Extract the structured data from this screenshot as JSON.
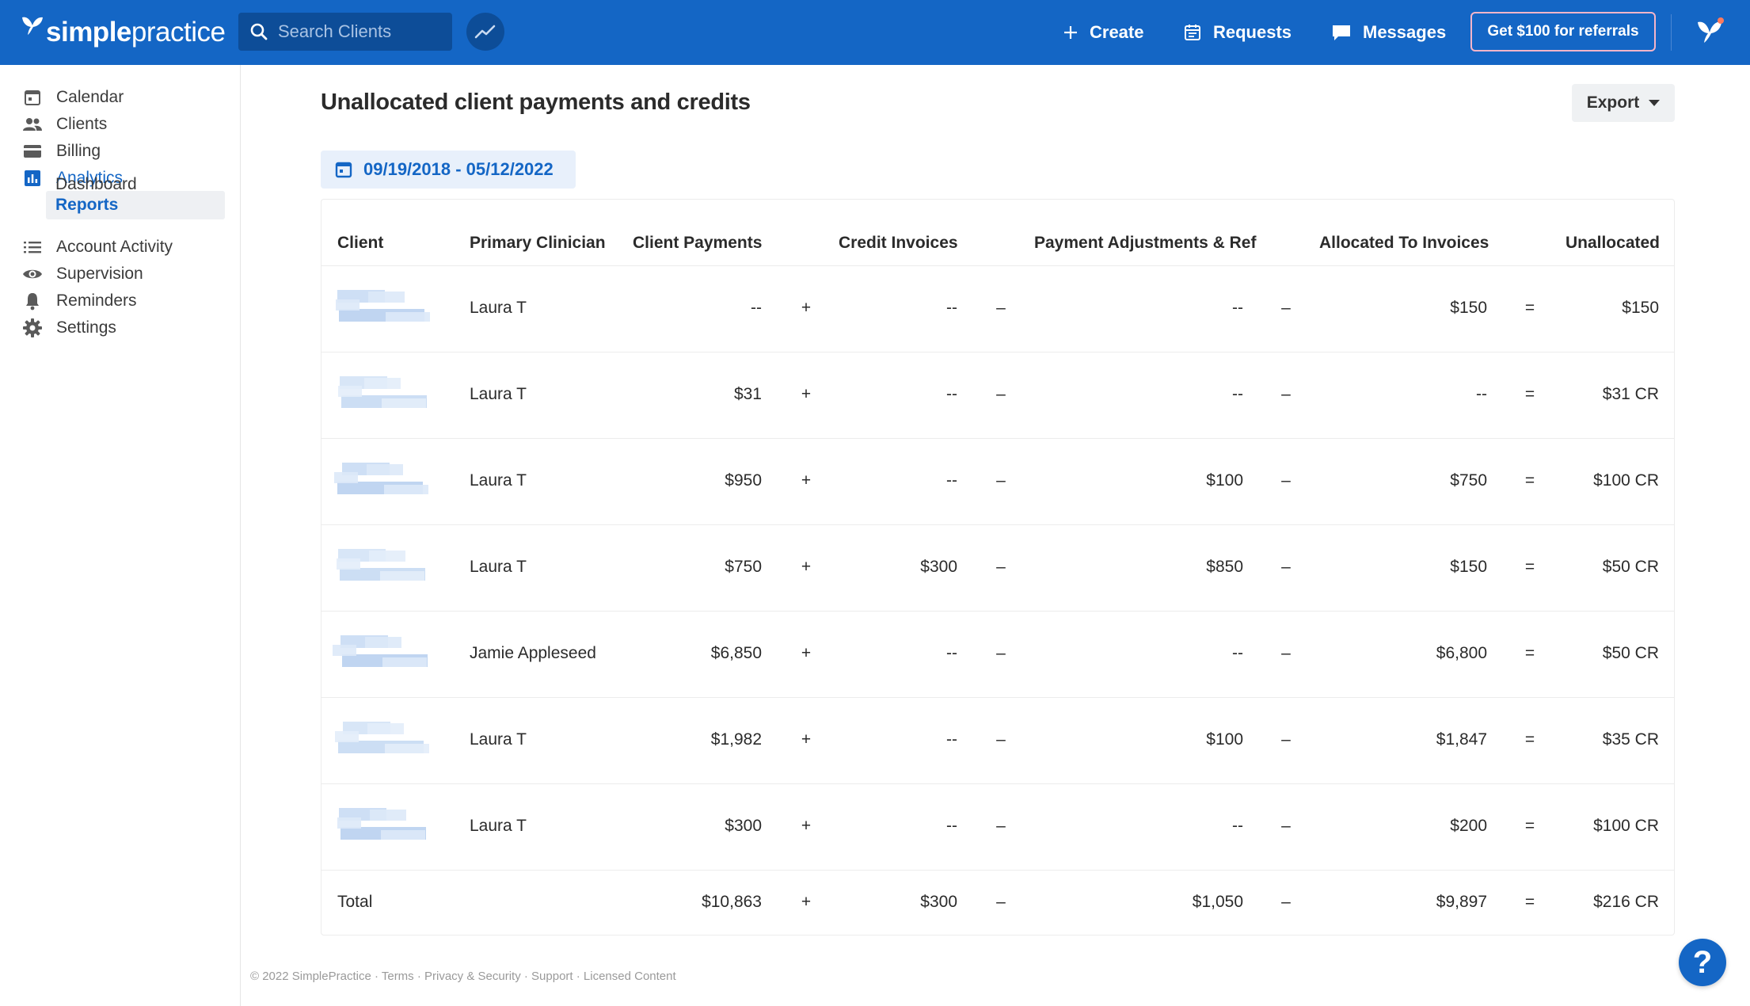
{
  "brand": {
    "name_bold": "simple",
    "name_light": "practice"
  },
  "search": {
    "placeholder": "Search Clients"
  },
  "topnav": {
    "create": "Create",
    "requests": "Requests",
    "messages": "Messages",
    "referral": "Get $100 for referrals"
  },
  "sidebar": {
    "items": [
      {
        "label": "Calendar",
        "icon": "calendar-icon"
      },
      {
        "label": "Clients",
        "icon": "clients-icon"
      },
      {
        "label": "Billing",
        "icon": "billing-icon"
      },
      {
        "label": "Analytics",
        "icon": "analytics-icon",
        "active": true
      },
      {
        "label": "Account Activity",
        "icon": "list-icon"
      },
      {
        "label": "Supervision",
        "icon": "eye-icon"
      },
      {
        "label": "Reminders",
        "icon": "bell-icon"
      },
      {
        "label": "Settings",
        "icon": "gear-icon"
      }
    ],
    "sub": [
      {
        "label": "Dashboard"
      },
      {
        "label": "Reports",
        "active": true
      }
    ]
  },
  "page": {
    "title": "Unallocated client payments and credits",
    "export": "Export",
    "date_range": "09/19/2018 - 05/12/2022"
  },
  "table": {
    "headers": {
      "client": "Client",
      "clinician": "Primary Clinician",
      "payments": "Client Payments",
      "credits": "Credit Invoices",
      "adjustments": "Payment Adjustments & Ref",
      "allocated": "Allocated To Invoices",
      "unallocated": "Unallocated"
    },
    "operators": {
      "plus": "+",
      "minus": "–",
      "equals": "="
    },
    "rows": [
      {
        "clinician": "Laura T",
        "payments": "--",
        "credits": "--",
        "adjustments": "--",
        "allocated": "$150",
        "unallocated": "$150"
      },
      {
        "clinician": "Laura T",
        "payments": "$31",
        "credits": "--",
        "adjustments": "--",
        "allocated": "--",
        "unallocated": "$31 CR"
      },
      {
        "clinician": "Laura T",
        "payments": "$950",
        "credits": "--",
        "adjustments": "$100",
        "allocated": "$750",
        "unallocated": "$100 CR"
      },
      {
        "clinician": "Laura T",
        "payments": "$750",
        "credits": "$300",
        "adjustments": "$850",
        "allocated": "$150",
        "unallocated": "$50 CR"
      },
      {
        "clinician": "Jamie Appleseed",
        "payments": "$6,850",
        "credits": "--",
        "adjustments": "--",
        "allocated": "$6,800",
        "unallocated": "$50 CR"
      },
      {
        "clinician": "Laura T",
        "payments": "$1,982",
        "credits": "--",
        "adjustments": "$100",
        "allocated": "$1,847",
        "unallocated": "$35 CR"
      },
      {
        "clinician": "Laura T",
        "payments": "$300",
        "credits": "--",
        "adjustments": "--",
        "allocated": "$200",
        "unallocated": "$100 CR"
      }
    ],
    "total": {
      "label": "Total",
      "payments": "$10,863",
      "credits": "$300",
      "adjustments": "$1,050",
      "allocated": "$9,897",
      "unallocated": "$216 CR"
    }
  },
  "footer": "© 2022 SimplePractice · Terms · Privacy & Security · Support · Licensed Content",
  "help": "?",
  "colors": {
    "brand_blue": "#1466c5",
    "dark_blue": "#0d4d98",
    "referral_border": "#f5b5c9"
  }
}
